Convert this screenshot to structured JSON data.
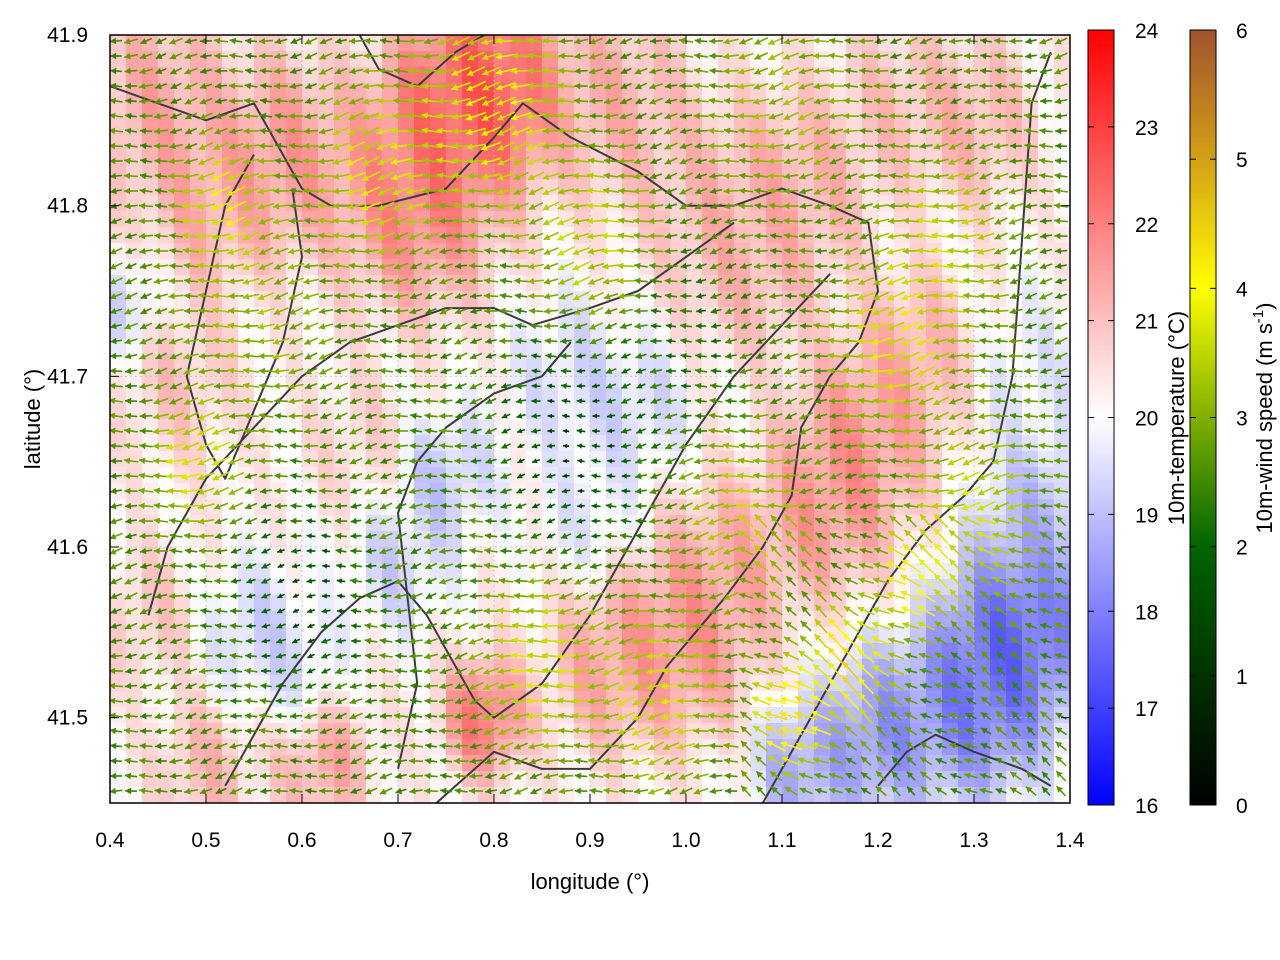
{
  "chart_data": {
    "type": "heatmap",
    "subtype": "temperature field with wind vectors and contour lines",
    "xlabel": "longitude (°)",
    "ylabel": "latitude (°)",
    "xlim": [
      0.4,
      1.4
    ],
    "ylim": [
      41.45,
      41.9
    ],
    "xticks": [
      "0.4",
      "0.5",
      "0.6",
      "0.7",
      "0.8",
      "0.9",
      "1.0",
      "1.1",
      "1.2",
      "1.3",
      "1.4"
    ],
    "yticks": [
      "41.5",
      "41.6",
      "41.7",
      "41.8",
      "41.9"
    ],
    "grid": true,
    "colorbars": [
      {
        "label": "10m-temperature (°C)",
        "range": [
          16,
          24
        ],
        "ticks": [
          "16",
          "17",
          "18",
          "19",
          "20",
          "21",
          "22",
          "23",
          "24"
        ],
        "colors": [
          "#0000ff",
          "#ffffff",
          "#ff0000"
        ]
      },
      {
        "label_main": "10m-wind speed (m s",
        "label_sup": "-1",
        "label_end": ")",
        "range": [
          0,
          6
        ],
        "ticks": [
          "0",
          "1",
          "2",
          "3",
          "4",
          "5",
          "6"
        ],
        "colors": [
          "#000000",
          "#006400",
          "#80b000",
          "#ffff00",
          "#d4a017",
          "#a0522d"
        ]
      }
    ],
    "temperature_regions": [
      {
        "lon": 0.8,
        "lat": 41.87,
        "value": 23.8,
        "spread": 0.06
      },
      {
        "lon": 0.72,
        "lat": 41.81,
        "value": 23.0,
        "spread": 0.07
      },
      {
        "lon": 0.58,
        "lat": 41.83,
        "value": 22.3,
        "spread": 0.06
      },
      {
        "lon": 0.45,
        "lat": 41.86,
        "value": 22.0,
        "spread": 0.06
      },
      {
        "lon": 0.5,
        "lat": 41.8,
        "value": 21.8,
        "spread": 0.05
      },
      {
        "lon": 0.47,
        "lat": 41.7,
        "value": 21.3,
        "spread": 0.05
      },
      {
        "lon": 0.75,
        "lat": 41.86,
        "value": 22.8,
        "spread": 0.05
      },
      {
        "lon": 0.93,
        "lat": 41.86,
        "value": 21.8,
        "spread": 0.06
      },
      {
        "lon": 1.03,
        "lat": 41.8,
        "value": 21.6,
        "spread": 0.06
      },
      {
        "lon": 1.12,
        "lat": 41.81,
        "value": 21.8,
        "spread": 0.06
      },
      {
        "lon": 1.22,
        "lat": 41.86,
        "value": 21.4,
        "spread": 0.05
      },
      {
        "lon": 1.3,
        "lat": 41.85,
        "value": 21.7,
        "spread": 0.05
      },
      {
        "lon": 1.07,
        "lat": 41.76,
        "value": 21.5,
        "spread": 0.05
      },
      {
        "lon": 1.18,
        "lat": 41.66,
        "value": 22.4,
        "spread": 0.06
      },
      {
        "lon": 1.14,
        "lat": 41.62,
        "value": 22.2,
        "spread": 0.05
      },
      {
        "lon": 1.24,
        "lat": 41.71,
        "value": 21.8,
        "spread": 0.05
      },
      {
        "lon": 1.0,
        "lat": 41.55,
        "value": 22.5,
        "spread": 0.06
      },
      {
        "lon": 0.92,
        "lat": 41.53,
        "value": 22.0,
        "spread": 0.05
      },
      {
        "lon": 1.05,
        "lat": 41.59,
        "value": 21.8,
        "spread": 0.05
      },
      {
        "lon": 0.79,
        "lat": 41.5,
        "value": 23.2,
        "spread": 0.035
      },
      {
        "lon": 0.62,
        "lat": 41.48,
        "value": 22.3,
        "spread": 0.04
      },
      {
        "lon": 0.5,
        "lat": 41.47,
        "value": 21.6,
        "spread": 0.04
      },
      {
        "lon": 0.44,
        "lat": 41.56,
        "value": 21.2,
        "spread": 0.04
      },
      {
        "lon": 0.66,
        "lat": 41.66,
        "value": 21.0,
        "spread": 0.04
      },
      {
        "lon": 0.75,
        "lat": 41.64,
        "value": 18.5,
        "spread": 0.04
      },
      {
        "lon": 0.7,
        "lat": 41.59,
        "value": 18.8,
        "spread": 0.04
      },
      {
        "lon": 0.88,
        "lat": 41.7,
        "value": 19.0,
        "spread": 0.05
      },
      {
        "lon": 0.95,
        "lat": 41.68,
        "value": 18.9,
        "spread": 0.04
      },
      {
        "lon": 0.9,
        "lat": 41.62,
        "value": 19.3,
        "spread": 0.04
      },
      {
        "lon": 0.55,
        "lat": 41.55,
        "value": 18.8,
        "spread": 0.04
      },
      {
        "lon": 0.6,
        "lat": 41.52,
        "value": 19.0,
        "spread": 0.04
      },
      {
        "lon": 0.42,
        "lat": 41.74,
        "value": 18.8,
        "spread": 0.03
      },
      {
        "lon": 1.35,
        "lat": 41.55,
        "value": 16.4,
        "spread": 0.06
      },
      {
        "lon": 1.3,
        "lat": 41.51,
        "value": 16.8,
        "spread": 0.06
      },
      {
        "lon": 1.2,
        "lat": 41.49,
        "value": 17.3,
        "spread": 0.05
      },
      {
        "lon": 1.12,
        "lat": 41.47,
        "value": 17.8,
        "spread": 0.04
      },
      {
        "lon": 1.37,
        "lat": 41.62,
        "value": 18.3,
        "spread": 0.05
      },
      {
        "lon": 1.36,
        "lat": 41.7,
        "value": 19.3,
        "spread": 0.05
      }
    ],
    "wind_regions": [
      {
        "lon": 0.8,
        "lat": 41.86,
        "speed": 4.3,
        "spread": 0.06
      },
      {
        "lon": 0.68,
        "lat": 41.82,
        "speed": 4.0,
        "spread": 0.05
      },
      {
        "lon": 0.52,
        "lat": 41.8,
        "speed": 4.3,
        "spread": 0.035
      },
      {
        "lon": 0.49,
        "lat": 41.65,
        "speed": 4.0,
        "spread": 0.035
      },
      {
        "lon": 0.9,
        "lat": 41.78,
        "speed": 3.6,
        "spread": 0.05
      },
      {
        "lon": 1.22,
        "lat": 41.72,
        "speed": 4.0,
        "spread": 0.05
      },
      {
        "lon": 1.27,
        "lat": 41.78,
        "speed": 3.6,
        "spread": 0.05
      },
      {
        "lon": 1.3,
        "lat": 41.62,
        "speed": 3.8,
        "spread": 0.05
      },
      {
        "lon": 0.85,
        "lat": 41.53,
        "speed": 3.9,
        "spread": 0.05
      },
      {
        "lon": 0.97,
        "lat": 41.51,
        "speed": 3.8,
        "spread": 0.05
      },
      {
        "lon": 1.17,
        "lat": 41.53,
        "speed": 5.2,
        "spread": 0.035
      },
      {
        "lon": 1.11,
        "lat": 41.5,
        "speed": 5.4,
        "spread": 0.03
      },
      {
        "lon": 1.24,
        "lat": 41.58,
        "speed": 4.9,
        "spread": 0.03
      },
      {
        "lon": 1.06,
        "lat": 41.62,
        "speed": 3.4,
        "spread": 0.05
      },
      {
        "lon": 0.55,
        "lat": 41.74,
        "speed": 3.0,
        "spread": 0.06
      },
      {
        "lon": 1.1,
        "lat": 41.86,
        "speed": 3.0,
        "spread": 0.06
      },
      {
        "lon": 0.88,
        "lat": 41.66,
        "speed": 0.2,
        "spread": 0.06
      },
      {
        "lon": 0.6,
        "lat": 41.57,
        "speed": 0.3,
        "spread": 0.05
      },
      {
        "lon": 1.0,
        "lat": 41.72,
        "speed": 1.2,
        "spread": 0.05
      }
    ],
    "contours": [
      [
        [
          0.4,
          41.87
        ],
        [
          0.45,
          41.86
        ],
        [
          0.5,
          41.85
        ],
        [
          0.55,
          41.86
        ],
        [
          0.58,
          41.83
        ],
        [
          0.6,
          41.81
        ],
        [
          0.63,
          41.8
        ],
        [
          0.68,
          41.8
        ],
        [
          0.75,
          41.81
        ],
        [
          0.8,
          41.84
        ],
        [
          0.83,
          41.86
        ],
        [
          0.88,
          41.84
        ],
        [
          0.95,
          41.82
        ],
        [
          1.0,
          41.8
        ],
        [
          1.05,
          41.8
        ],
        [
          1.1,
          41.81
        ],
        [
          1.15,
          41.8
        ],
        [
          1.19,
          41.79
        ],
        [
          1.2,
          41.75
        ],
        [
          1.18,
          41.72
        ],
        [
          1.15,
          41.7
        ],
        [
          1.12,
          41.67
        ],
        [
          1.11,
          41.63
        ],
        [
          1.08,
          41.6
        ],
        [
          1.04,
          41.57
        ],
        [
          1.01,
          41.55
        ],
        [
          0.98,
          41.53
        ],
        [
          0.95,
          41.5
        ],
        [
          0.9,
          41.47
        ],
        [
          0.85,
          41.47
        ],
        [
          0.8,
          41.48
        ],
        [
          0.76,
          41.46
        ],
        [
          0.74,
          41.45
        ]
      ],
      [
        [
          0.55,
          41.83
        ],
        [
          0.52,
          41.8
        ],
        [
          0.5,
          41.75
        ],
        [
          0.48,
          41.7
        ],
        [
          0.5,
          41.66
        ],
        [
          0.52,
          41.64
        ],
        [
          0.55,
          41.68
        ],
        [
          0.58,
          41.72
        ],
        [
          0.6,
          41.77
        ],
        [
          0.59,
          41.81
        ]
      ],
      [
        [
          0.44,
          41.56
        ],
        [
          0.46,
          41.6
        ],
        [
          0.5,
          41.64
        ],
        [
          0.55,
          41.67
        ],
        [
          0.6,
          41.7
        ],
        [
          0.65,
          41.72
        ],
        [
          0.7,
          41.73
        ],
        [
          0.75,
          41.74
        ],
        [
          0.8,
          41.74
        ],
        [
          0.84,
          41.73
        ],
        [
          0.9,
          41.74
        ],
        [
          0.95,
          41.75
        ],
        [
          1.0,
          41.77
        ],
        [
          1.05,
          41.79
        ]
      ],
      [
        [
          0.52,
          41.46
        ],
        [
          0.55,
          41.49
        ],
        [
          0.58,
          41.52
        ],
        [
          0.62,
          41.55
        ],
        [
          0.66,
          41.57
        ],
        [
          0.7,
          41.58
        ],
        [
          0.73,
          41.56
        ],
        [
          0.75,
          41.54
        ],
        [
          0.78,
          41.51
        ],
        [
          0.8,
          41.5
        ],
        [
          0.85,
          41.52
        ],
        [
          0.9,
          41.56
        ],
        [
          0.95,
          41.61
        ],
        [
          1.0,
          41.66
        ],
        [
          1.05,
          41.7
        ],
        [
          1.1,
          41.73
        ],
        [
          1.15,
          41.76
        ]
      ],
      [
        [
          0.7,
          41.47
        ],
        [
          0.72,
          41.52
        ],
        [
          0.71,
          41.57
        ],
        [
          0.7,
          41.62
        ],
        [
          0.72,
          41.65
        ],
        [
          0.75,
          41.67
        ],
        [
          0.8,
          41.69
        ],
        [
          0.85,
          41.7
        ],
        [
          0.88,
          41.72
        ]
      ],
      [
        [
          1.08,
          41.45
        ],
        [
          1.12,
          41.49
        ],
        [
          1.15,
          41.52
        ],
        [
          1.18,
          41.55
        ],
        [
          1.21,
          41.58
        ],
        [
          1.25,
          41.61
        ],
        [
          1.29,
          41.63
        ],
        [
          1.32,
          41.65
        ],
        [
          1.34,
          41.7
        ],
        [
          1.35,
          41.78
        ],
        [
          1.36,
          41.86
        ],
        [
          1.38,
          41.89
        ]
      ],
      [
        [
          1.2,
          41.46
        ],
        [
          1.23,
          41.48
        ],
        [
          1.26,
          41.49
        ],
        [
          1.3,
          41.48
        ],
        [
          1.35,
          41.47
        ],
        [
          1.38,
          41.46
        ]
      ],
      [
        [
          0.66,
          41.9
        ],
        [
          0.68,
          41.88
        ],
        [
          0.72,
          41.87
        ],
        [
          0.76,
          41.89
        ],
        [
          0.79,
          41.9
        ]
      ]
    ]
  }
}
